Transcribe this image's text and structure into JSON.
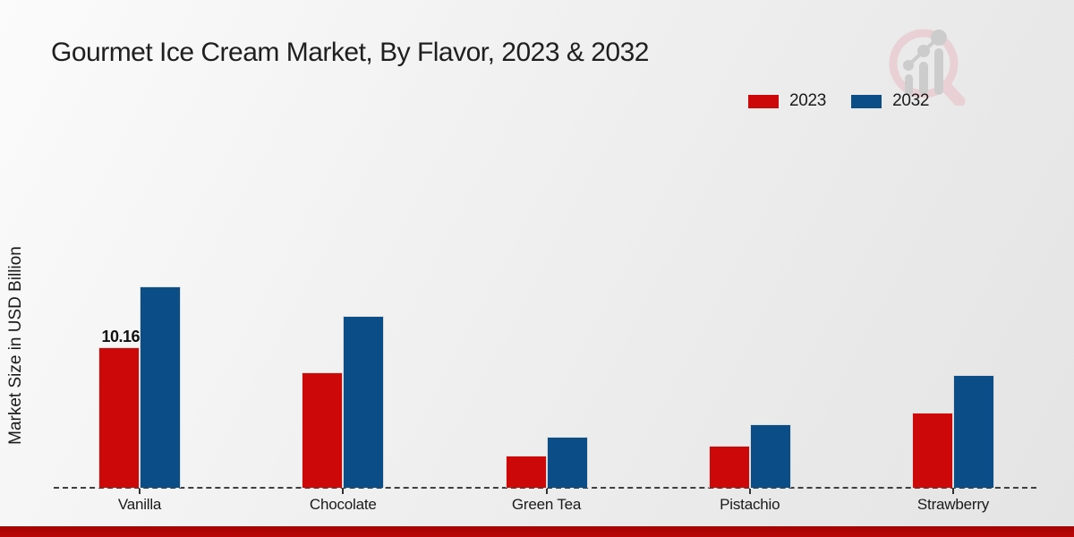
{
  "header": {
    "title": "Gourmet Ice Cream Market, By Flavor, 2023 & 2032"
  },
  "chart_data": {
    "type": "bar",
    "title": "Gourmet Ice Cream Market, By Flavor, 2023 & 2032",
    "categories": [
      "Vanilla",
      "Chocolate",
      "Green Tea",
      "Pistachio",
      "Strawberry"
    ],
    "series": [
      {
        "name": "2023",
        "color": "#cc0808",
        "values": [
          10.16,
          8.3,
          2.35,
          3.05,
          5.45
        ]
      },
      {
        "name": "2032",
        "color": "#0b4d87",
        "values": [
          14.5,
          12.4,
          3.65,
          4.6,
          8.1
        ]
      }
    ],
    "xlabel": "",
    "ylabel": "Market Size in USD Billion",
    "ylim": [
      0,
      16
    ],
    "grid": false,
    "legend_position": "top-right",
    "baseline_style": "dashed",
    "annotations": [
      {
        "series": "2023",
        "category": "Vanilla",
        "text": "10.16"
      }
    ]
  },
  "icons": {
    "logo": "magnifier-bar-chart-watermark-logo"
  },
  "colors": {
    "series_2023": "#cc0808",
    "series_2032": "#0b4d87",
    "footer_strip": "#b30505",
    "baseline": "#3f3f3f",
    "background": "#ededed"
  }
}
